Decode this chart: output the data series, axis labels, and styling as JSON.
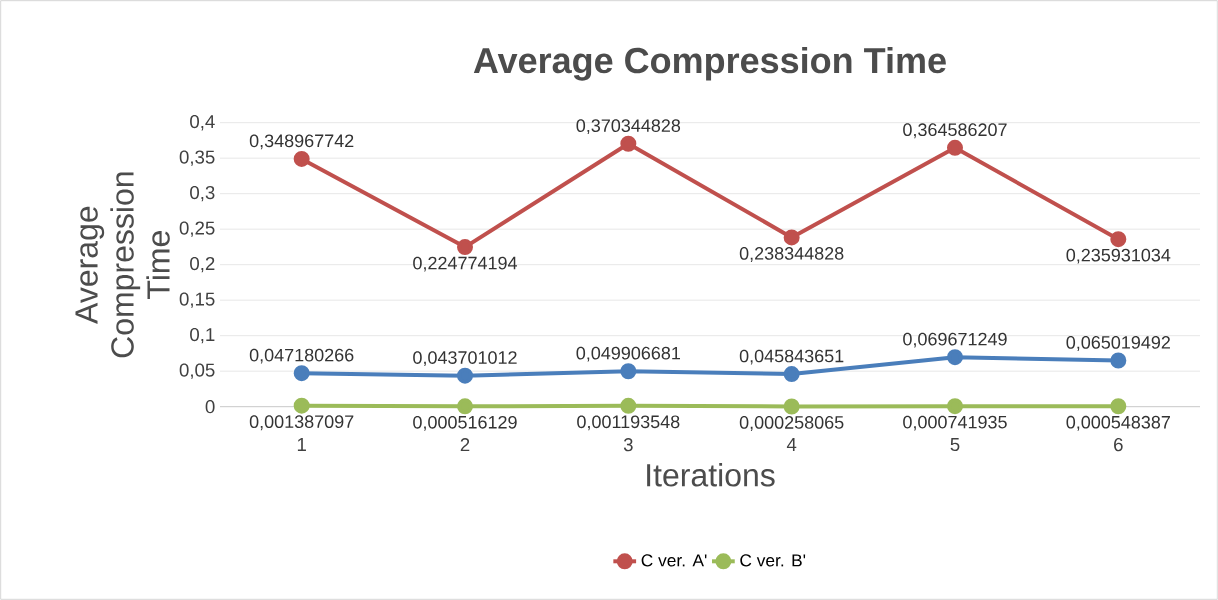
{
  "chart_data": {
    "type": "line",
    "title": "Average Compression Time",
    "xlabel": "Iterations",
    "ylabel": "Average Compression Time",
    "categories": [
      "1",
      "2",
      "3",
      "4",
      "5",
      "6"
    ],
    "series": [
      {
        "color": "#4a7ebb",
        "values": [
          0.047180266,
          0.043701012,
          0.049906681,
          0.045843651,
          0.069671249,
          0.065019492
        ],
        "value_labels": [
          "0,047180266",
          "0,043701012",
          "0,049906681",
          "0,045843651",
          "0,069671249",
          "0,065019492"
        ]
      },
      {
        "name": "C ver. A'",
        "color": "#c0504d",
        "values": [
          0.348967742,
          0.224774194,
          0.370344828,
          0.238344828,
          0.364586207,
          0.235931034
        ],
        "value_labels": [
          "0,348967742",
          "0,224774194",
          "0,370344828",
          "0,238344828",
          "0,364586207",
          "0,235931034"
        ]
      },
      {
        "name": "C ver. B'",
        "color": "#9bbb59",
        "values": [
          0.001387097,
          0.000516129,
          0.001193548,
          0.000258065,
          0.000741935,
          0.000548387
        ],
        "value_labels": [
          "0,001387097",
          "0,000516129",
          "0,001193548",
          "0,000258065",
          "0,000741935",
          "0,000548387"
        ]
      }
    ],
    "ylim": [
      0,
      0.4
    ],
    "yticks": [
      0,
      {
        "value": 0.05,
        "label": "0,05"
      },
      {
        "value": 0.1,
        "label": "0,1"
      },
      {
        "value": 0.15,
        "label": "0,15"
      },
      {
        "value": 0.2,
        "label": "0,2"
      },
      {
        "value": 0.25,
        "label": "0,25"
      },
      {
        "value": 0.3,
        "label": "0,3"
      },
      {
        "value": 0.35,
        "label": "0,35"
      },
      {
        "value": 0.4,
        "label": "0,4"
      }
    ],
    "grid": "y",
    "legend": "bottom",
    "marker": "circle",
    "line_style": "solid"
  }
}
